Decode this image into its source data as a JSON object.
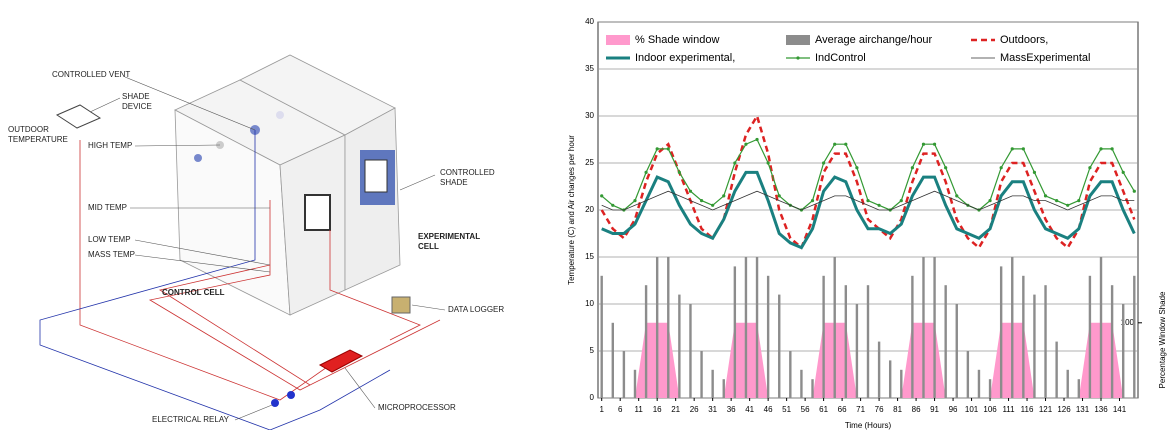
{
  "diagram": {
    "labels": [
      "CONTROLLED VENT",
      "SHADE DEVICE",
      "OUTDOOR TEMPERATURE",
      "HIGH TEMP",
      "MID TEMP",
      "LOW TEMP",
      "MASS TEMP",
      "CONTROL CELL",
      "EXPERIMENTAL CELL",
      "CONTROLLED SHADE",
      "DATA LOGGER",
      "MICROPROCESSOR",
      "ELECTRICAL RELAY"
    ]
  },
  "chart_data": {
    "type": "line",
    "x_label": "Time (Hours)",
    "y_label": "Temperature (C) and Air changes per hour",
    "y2_label": "Percentage Window Shade",
    "x": [
      1,
      4,
      7,
      10,
      13,
      16,
      19,
      22,
      25,
      28,
      31,
      34,
      37,
      40,
      43,
      46,
      49,
      52,
      55,
      58,
      61,
      64,
      67,
      70,
      73,
      76,
      79,
      82,
      85,
      88,
      91,
      94,
      97,
      100,
      103,
      106,
      109,
      112,
      115,
      118,
      121,
      124,
      127,
      130,
      133,
      136,
      139,
      142,
      145
    ],
    "xlim": [
      0,
      146
    ],
    "xticks": [
      1,
      6,
      11,
      16,
      21,
      26,
      31,
      36,
      41,
      46,
      51,
      56,
      61,
      66,
      71,
      76,
      81,
      86,
      91,
      96,
      101,
      106,
      111,
      116,
      121,
      126,
      131,
      136,
      141
    ],
    "ylim": [
      0,
      40
    ],
    "yticks": [
      0,
      5,
      10,
      15,
      20,
      25,
      30,
      35,
      40
    ],
    "y2lim": [
      0,
      500
    ],
    "y2ticks": [
      100
    ],
    "grid": true,
    "series": [
      {
        "name": "% Shade window",
        "color": "#ff99cc",
        "style": "area",
        "axis": "y2",
        "values": [
          0,
          0,
          0,
          0,
          100,
          100,
          100,
          0,
          0,
          0,
          0,
          0,
          100,
          100,
          100,
          0,
          0,
          0,
          0,
          0,
          100,
          100,
          100,
          0,
          0,
          0,
          0,
          0,
          100,
          100,
          100,
          0,
          0,
          0,
          0,
          0,
          100,
          100,
          100,
          0,
          0,
          0,
          0,
          0,
          100,
          100,
          100,
          0,
          0
        ]
      },
      {
        "name": "Average airchange/hour",
        "color": "#8c8c8c",
        "style": "bar",
        "values": [
          13,
          8,
          5,
          3,
          12,
          15,
          15,
          11,
          10,
          5,
          3,
          2,
          14,
          15,
          15,
          13,
          11,
          5,
          3,
          2,
          13,
          15,
          12,
          10,
          12,
          6,
          4,
          3,
          13,
          15,
          15,
          12,
          10,
          5,
          3,
          2,
          14,
          15,
          13,
          11,
          12,
          6,
          3,
          2,
          13,
          15,
          12,
          10,
          13
        ]
      },
      {
        "name": "Outdoors,",
        "color": "#dd2222",
        "style": "line",
        "dash": true,
        "width": 2.5,
        "values": [
          20,
          18,
          17,
          19,
          23,
          26,
          27,
          24,
          21,
          18,
          17,
          19,
          24,
          28,
          30,
          26,
          20,
          17,
          16,
          19,
          24,
          26,
          26,
          23,
          19,
          18,
          17,
          19,
          23,
          26,
          26,
          23,
          19,
          17,
          16,
          18,
          23,
          25,
          25,
          22,
          19,
          17,
          16,
          18,
          23,
          25,
          25,
          22,
          19
        ]
      },
      {
        "name": "Indoor experimental,",
        "color": "#1a8080",
        "style": "line",
        "width": 3,
        "values": [
          18,
          17.5,
          17.5,
          18.5,
          21,
          23.5,
          23,
          20.5,
          18.5,
          17.5,
          17,
          19,
          22,
          24,
          24,
          21,
          17.5,
          16.5,
          16,
          18,
          22,
          23.5,
          23,
          20,
          18,
          18,
          17.5,
          18.5,
          21.5,
          23.5,
          23.5,
          20.5,
          18,
          17.5,
          17,
          18,
          21.5,
          23,
          23,
          20,
          18,
          17.5,
          17,
          18,
          21.5,
          23,
          23,
          20,
          17.5
        ]
      },
      {
        "name": "IndControl",
        "color": "#339933",
        "style": "line",
        "width": 1.2,
        "markers": true,
        "values": [
          21.5,
          20.5,
          20,
          21,
          24,
          26.5,
          26.5,
          24,
          22,
          21,
          20.5,
          21.5,
          25,
          27,
          27.5,
          25,
          21.5,
          20.5,
          20,
          21,
          25,
          27,
          27,
          24.5,
          21,
          20.5,
          20,
          21,
          24.5,
          27,
          27,
          24.5,
          21.5,
          20.5,
          20,
          21,
          24.5,
          26.5,
          26.5,
          24,
          21.5,
          21,
          20.5,
          21,
          24.5,
          26.5,
          26.5,
          24,
          22
        ]
      },
      {
        "name": "MassExperimental",
        "color": "#333333",
        "style": "line",
        "width": 0.8,
        "values": [
          20.5,
          20,
          20,
          20.5,
          21,
          21.5,
          22,
          21.5,
          21,
          20.5,
          20,
          20.5,
          21,
          21.5,
          22,
          21.5,
          21,
          20.5,
          20,
          20.5,
          21,
          21.5,
          21.5,
          21,
          20.5,
          20,
          20,
          20.5,
          21,
          21.5,
          22,
          21.5,
          21,
          20.5,
          20,
          20.5,
          21,
          21.5,
          21.5,
          21,
          21,
          20.5,
          20,
          20.5,
          21,
          21.5,
          21.5,
          21,
          21
        ]
      }
    ]
  }
}
